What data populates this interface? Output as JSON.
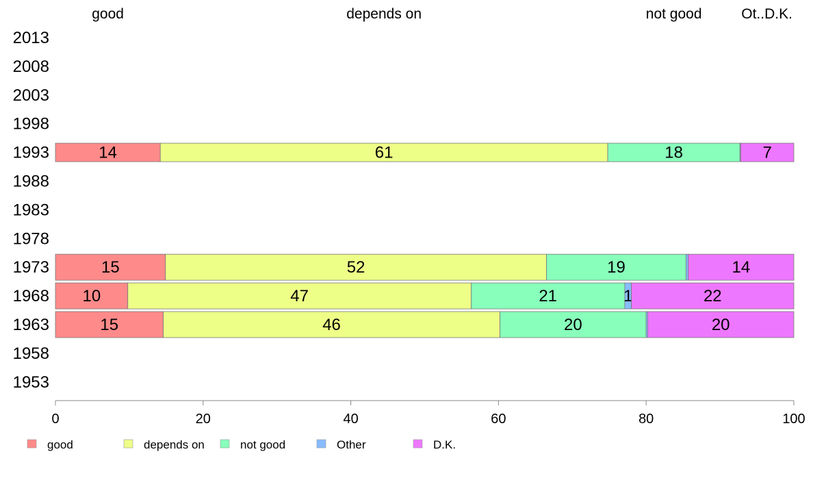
{
  "chart_data": {
    "type": "bar",
    "orientation": "horizontal",
    "stacked": true,
    "top_labels": [
      "good",
      "depends on",
      "not good",
      "Ot..D.K."
    ],
    "categories": [
      "2013",
      "2008",
      "2003",
      "1998",
      "1993",
      "1988",
      "1983",
      "1978",
      "1973",
      "1968",
      "1963",
      "1958",
      "1953"
    ],
    "series": [
      {
        "name": "good",
        "color": "#ff8a8a",
        "values": [
          null,
          null,
          null,
          null,
          14.2,
          null,
          null,
          null,
          14.9,
          9.8,
          14.6,
          null,
          null
        ],
        "labels": [
          "",
          "",
          "",
          "",
          "14",
          "",
          "",
          "",
          "15",
          "10",
          "15",
          "",
          ""
        ]
      },
      {
        "name": "depends on",
        "color": "#eeff88",
        "values": [
          null,
          null,
          null,
          null,
          60.6,
          null,
          null,
          null,
          51.6,
          46.5,
          45.6,
          null,
          null
        ],
        "labels": [
          "",
          "",
          "",
          "",
          "61",
          "",
          "",
          "",
          "52",
          "47",
          "46",
          "",
          ""
        ]
      },
      {
        "name": "not good",
        "color": "#88ffbb",
        "values": [
          null,
          null,
          null,
          null,
          17.9,
          null,
          null,
          null,
          18.9,
          20.8,
          19.8,
          null,
          null
        ],
        "labels": [
          "",
          "",
          "",
          "",
          "18",
          "",
          "",
          "",
          "19",
          "21",
          "20",
          "",
          ""
        ]
      },
      {
        "name": "Other",
        "color": "#88bbff",
        "values": [
          null,
          null,
          null,
          null,
          0.1,
          null,
          null,
          null,
          0.3,
          0.9,
          0.2,
          null,
          null
        ],
        "labels": [
          "",
          "",
          "",
          "",
          "",
          "",
          "",
          "",
          "",
          "1",
          "",
          "",
          ""
        ]
      },
      {
        "name": "D.K.",
        "color": "#ee77ff",
        "values": [
          null,
          null,
          null,
          null,
          7.2,
          null,
          null,
          null,
          14.3,
          22.0,
          19.8,
          null,
          null
        ],
        "labels": [
          "",
          "",
          "",
          "",
          "7",
          "",
          "",
          "",
          "14",
          "22",
          "20",
          "",
          ""
        ]
      }
    ],
    "xlim": [
      0,
      100
    ],
    "x_ticks": [
      "0",
      "20",
      "40",
      "60",
      "80",
      "100"
    ],
    "legend_position": "bottom-left",
    "grid": false
  }
}
